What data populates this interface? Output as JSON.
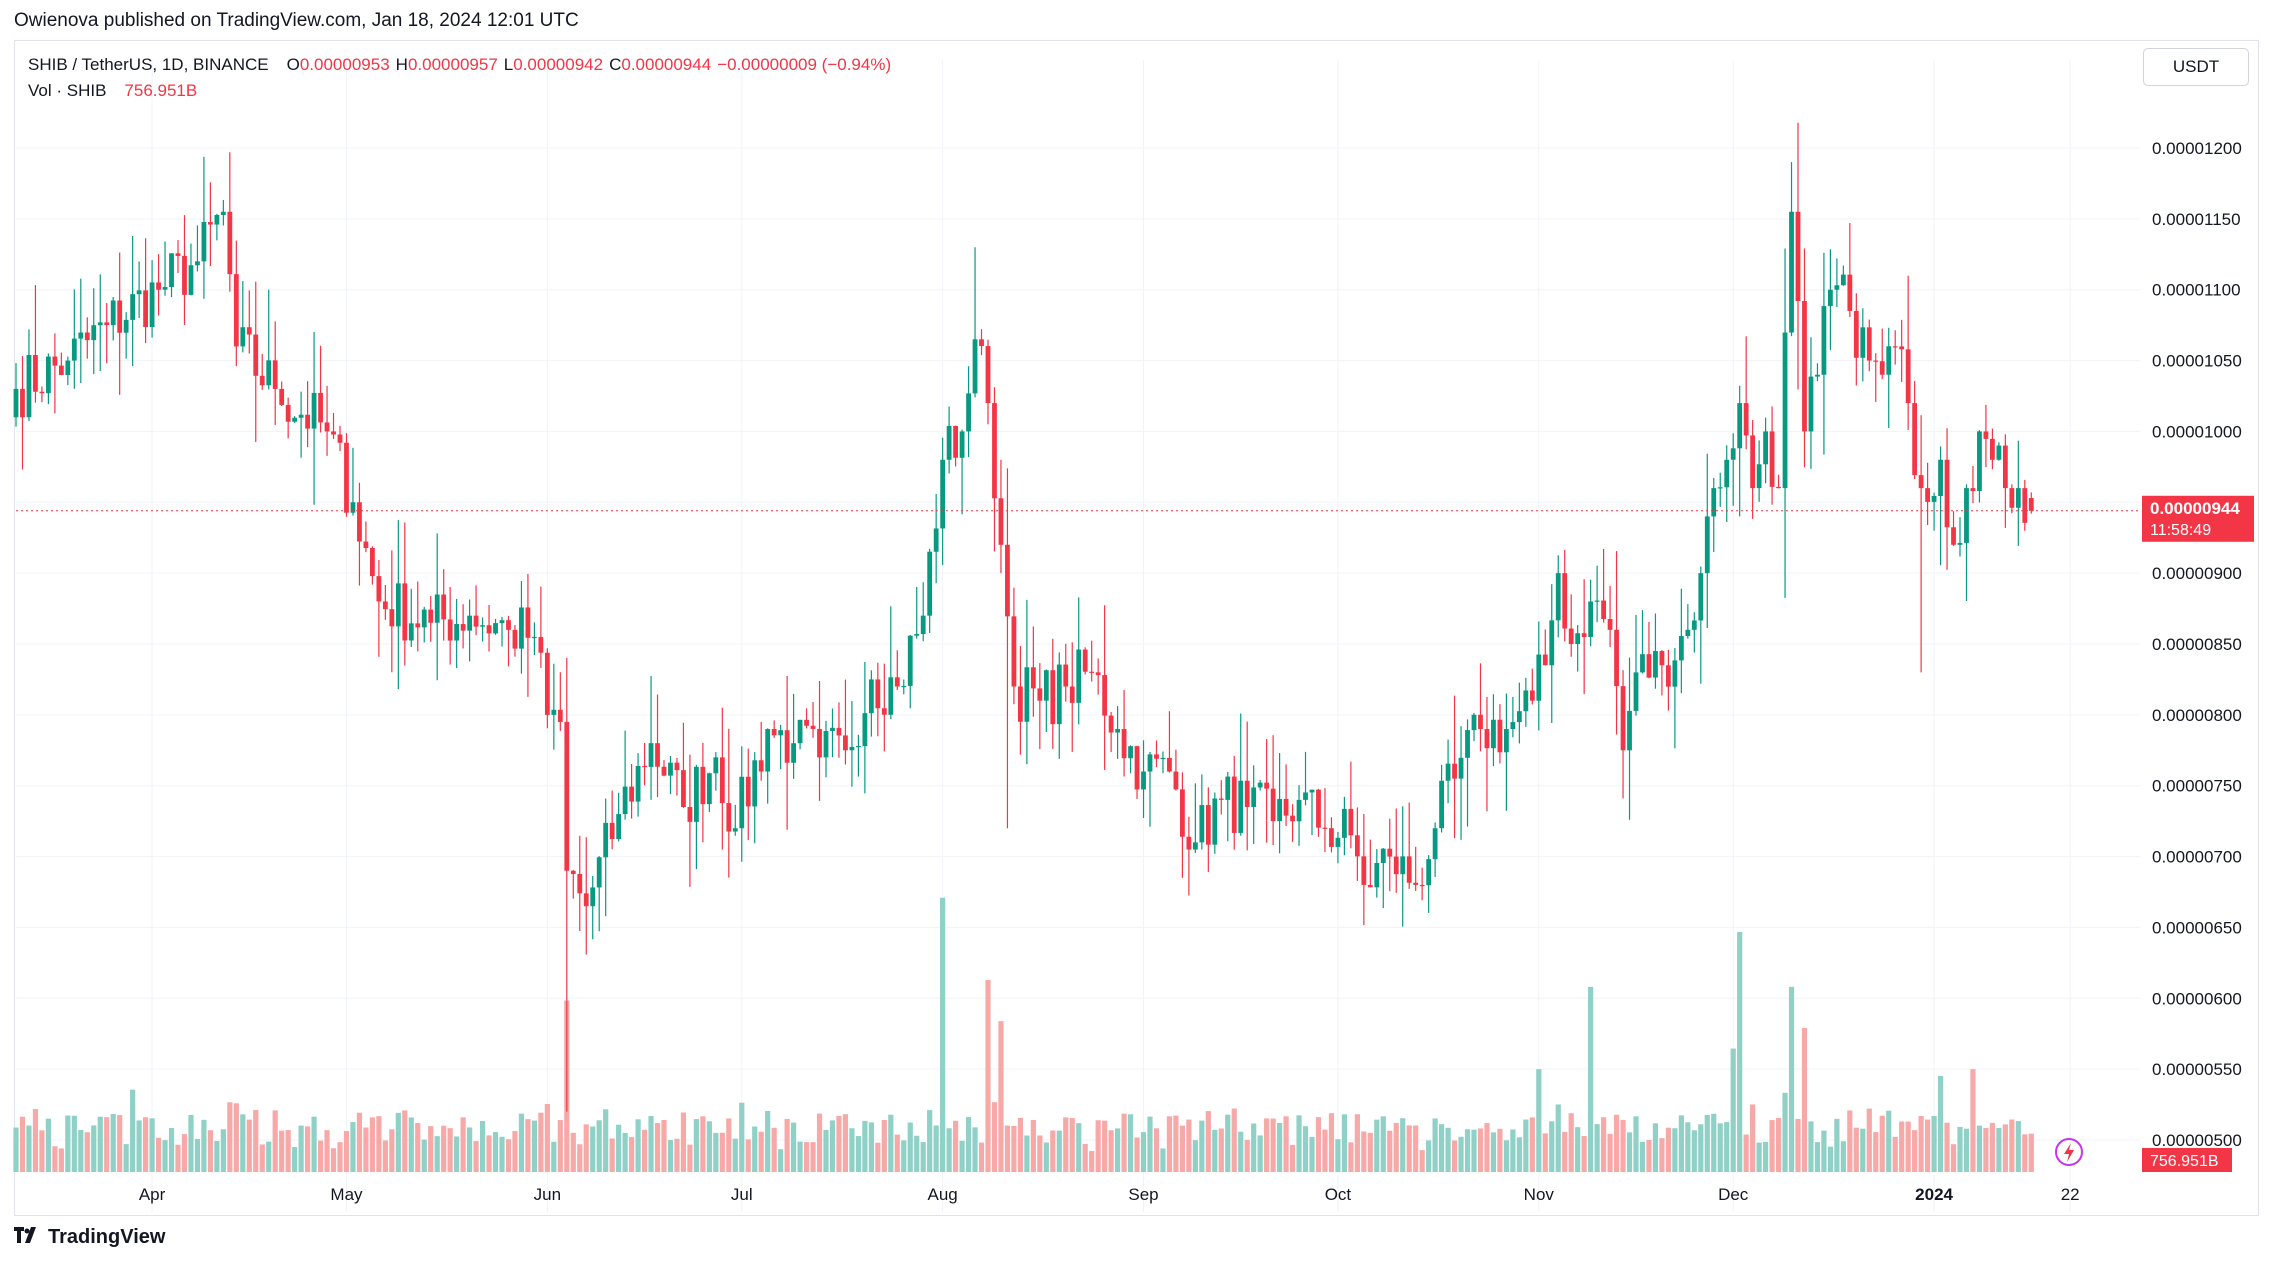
{
  "header": {
    "published_text": "Owienova published on TradingView.com, Jan 18, 2024 12:01 UTC"
  },
  "legend": {
    "symbol": "SHIB / TetherUS, 1D, BINANCE",
    "open_label": "O",
    "open": "0.00000953",
    "high_label": "H",
    "high": "0.00000957",
    "low_label": "L",
    "low": "0.00000942",
    "close_label": "C",
    "close": "0.00000944",
    "change": "−0.00000009 (−0.94%)",
    "vol_label": "Vol · SHIB",
    "vol_value": "756.951B"
  },
  "currency_button": "USDT",
  "price_badge": {
    "price": "0.00000944",
    "countdown": "11:58:49"
  },
  "volume_badge": "756.951B",
  "footer": {
    "brand": "TradingView"
  },
  "colors": {
    "up": "#089981",
    "down": "#f23645",
    "vol_up": "#8fd1c6",
    "vol_down": "#f7a9a7",
    "grid": "#f0f3fa"
  },
  "chart_data": {
    "type": "candlestick",
    "title": "SHIB / TetherUS, 1D, BINANCE",
    "ylim": [
      4.8e-06,
      1.22e-05
    ],
    "y_ticks": [
      "0.00001200",
      "0.00001150",
      "0.00001100",
      "0.00001050",
      "0.00001000",
      "0.00000950",
      "0.00000900",
      "0.00000850",
      "0.00000800",
      "0.00000750",
      "0.00000700",
      "0.00000650",
      "0.00000600",
      "0.00000550",
      "0.00000500"
    ],
    "x_ticks": [
      {
        "label": "Apr",
        "day": 21
      },
      {
        "label": "May",
        "day": 51
      },
      {
        "label": "Jun",
        "day": 82
      },
      {
        "label": "Jul",
        "day": 112
      },
      {
        "label": "Aug",
        "day": 143
      },
      {
        "label": "Sep",
        "day": 174
      },
      {
        "label": "Oct",
        "day": 204
      },
      {
        "label": "Nov",
        "day": 235
      },
      {
        "label": "Dec",
        "day": 265
      },
      {
        "label": "2024",
        "day": 296
      },
      {
        "label": "22",
        "day": 317
      }
    ],
    "current_price": 9.44e-06,
    "anchors": [
      {
        "day": 0,
        "close": 1.03e-05
      },
      {
        "day": 8,
        "close": 1.05e-05
      },
      {
        "day": 14,
        "close": 1.075e-05
      },
      {
        "day": 22,
        "close": 1.1e-05
      },
      {
        "day": 28,
        "close": 1.12e-05
      },
      {
        "day": 32,
        "close": 1.155e-05
      },
      {
        "day": 34,
        "close": 1.06e-05
      },
      {
        "day": 40,
        "close": 1.03e-05
      },
      {
        "day": 48,
        "close": 1e-05
      },
      {
        "day": 52,
        "close": 9.5e-06
      },
      {
        "day": 56,
        "close": 8.8e-06
      },
      {
        "day": 64,
        "close": 8.65e-06
      },
      {
        "day": 70,
        "close": 8.7e-06
      },
      {
        "day": 76,
        "close": 8.6e-06
      },
      {
        "day": 80,
        "close": 8.55e-06
      },
      {
        "day": 82,
        "close": 8e-06
      },
      {
        "day": 84,
        "close": 7.95e-06
      },
      {
        "day": 85,
        "close": 6.9e-06
      },
      {
        "day": 88,
        "close": 6.65e-06
      },
      {
        "day": 93,
        "close": 7.3e-06
      },
      {
        "day": 98,
        "close": 7.8e-06
      },
      {
        "day": 103,
        "close": 7.35e-06
      },
      {
        "day": 108,
        "close": 7.7e-06
      },
      {
        "day": 111,
        "close": 7.2e-06
      },
      {
        "day": 116,
        "close": 7.9e-06
      },
      {
        "day": 120,
        "close": 7.8e-06
      },
      {
        "day": 124,
        "close": 7.7e-06
      },
      {
        "day": 128,
        "close": 7.75e-06
      },
      {
        "day": 132,
        "close": 8.25e-06
      },
      {
        "day": 136,
        "close": 8.2e-06
      },
      {
        "day": 140,
        "close": 8.7e-06
      },
      {
        "day": 143,
        "close": 9.8e-06
      },
      {
        "day": 146,
        "close": 1e-05
      },
      {
        "day": 148,
        "close": 1.065e-05
      },
      {
        "day": 150,
        "close": 1.02e-05
      },
      {
        "day": 152,
        "close": 9.2e-06
      },
      {
        "day": 154,
        "close": 8.2e-06
      },
      {
        "day": 158,
        "close": 8.1e-06
      },
      {
        "day": 162,
        "close": 8.2e-06
      },
      {
        "day": 166,
        "close": 8.3e-06
      },
      {
        "day": 170,
        "close": 7.9e-06
      },
      {
        "day": 174,
        "close": 7.6e-06
      },
      {
        "day": 178,
        "close": 7.6e-06
      },
      {
        "day": 182,
        "close": 7.1e-06
      },
      {
        "day": 186,
        "close": 7.4e-06
      },
      {
        "day": 190,
        "close": 7.35e-06
      },
      {
        "day": 194,
        "close": 7.25e-06
      },
      {
        "day": 198,
        "close": 7.4e-06
      },
      {
        "day": 202,
        "close": 7.2e-06
      },
      {
        "day": 206,
        "close": 7.15e-06
      },
      {
        "day": 208,
        "close": 6.8e-06
      },
      {
        "day": 212,
        "close": 7e-06
      },
      {
        "day": 216,
        "close": 6.8e-06
      },
      {
        "day": 219,
        "close": 7.2e-06
      },
      {
        "day": 222,
        "close": 7.55e-06
      },
      {
        "day": 226,
        "close": 7.9e-06
      },
      {
        "day": 230,
        "close": 7.9e-06
      },
      {
        "day": 234,
        "close": 8.1e-06
      },
      {
        "day": 236,
        "close": 8.35e-06
      },
      {
        "day": 238,
        "close": 9e-06
      },
      {
        "day": 240,
        "close": 8.5e-06
      },
      {
        "day": 243,
        "close": 8.8e-06
      },
      {
        "day": 246,
        "close": 8.6e-06
      },
      {
        "day": 248,
        "close": 7.75e-06
      },
      {
        "day": 250,
        "close": 8.3e-06
      },
      {
        "day": 254,
        "close": 8.35e-06
      },
      {
        "day": 258,
        "close": 8.6e-06
      },
      {
        "day": 260,
        "close": 9e-06
      },
      {
        "day": 262,
        "close": 9.6e-06
      },
      {
        "day": 264,
        "close": 9.8e-06
      },
      {
        "day": 266,
        "close": 1.02e-05
      },
      {
        "day": 268,
        "close": 9.6e-06
      },
      {
        "day": 270,
        "close": 1e-05
      },
      {
        "day": 272,
        "close": 9.6e-06
      },
      {
        "day": 274,
        "close": 1.155e-05
      },
      {
        "day": 276,
        "close": 1e-05
      },
      {
        "day": 278,
        "close": 1.04e-05
      },
      {
        "day": 280,
        "close": 1.1e-05
      },
      {
        "day": 283,
        "close": 1.085e-05
      },
      {
        "day": 286,
        "close": 1.05e-05
      },
      {
        "day": 288,
        "close": 1.04e-05
      },
      {
        "day": 290,
        "close": 1.06e-05
      },
      {
        "day": 292,
        "close": 1.02e-05
      },
      {
        "day": 294,
        "close": 9.6e-06
      },
      {
        "day": 297,
        "close": 9.8e-06
      },
      {
        "day": 299,
        "close": 9.2e-06
      },
      {
        "day": 301,
        "close": 9.6e-06
      },
      {
        "day": 303,
        "close": 1e-05
      },
      {
        "day": 305,
        "close": 9.8e-06
      },
      {
        "day": 307,
        "close": 9.6e-06
      },
      {
        "day": 309,
        "close": 9.6e-06
      },
      {
        "day": 311,
        "close": 9.44e-06
      }
    ],
    "volume_ylim_b": [
      0,
      3500
    ],
    "volume_spikes_b": [
      {
        "day": 18,
        "value": 1200
      },
      {
        "day": 85,
        "value": 2500
      },
      {
        "day": 143,
        "value": 4000
      },
      {
        "day": 150,
        "value": 2800
      },
      {
        "day": 152,
        "value": 2200
      },
      {
        "day": 201,
        "value": 800
      },
      {
        "day": 235,
        "value": 1500
      },
      {
        "day": 243,
        "value": 2700
      },
      {
        "day": 265,
        "value": 1800
      },
      {
        "day": 266,
        "value": 3500
      },
      {
        "day": 274,
        "value": 2700
      },
      {
        "day": 276,
        "value": 2100
      },
      {
        "day": 297,
        "value": 1400
      },
      {
        "day": 302,
        "value": 1500
      }
    ],
    "last_volume": "756.951B"
  }
}
